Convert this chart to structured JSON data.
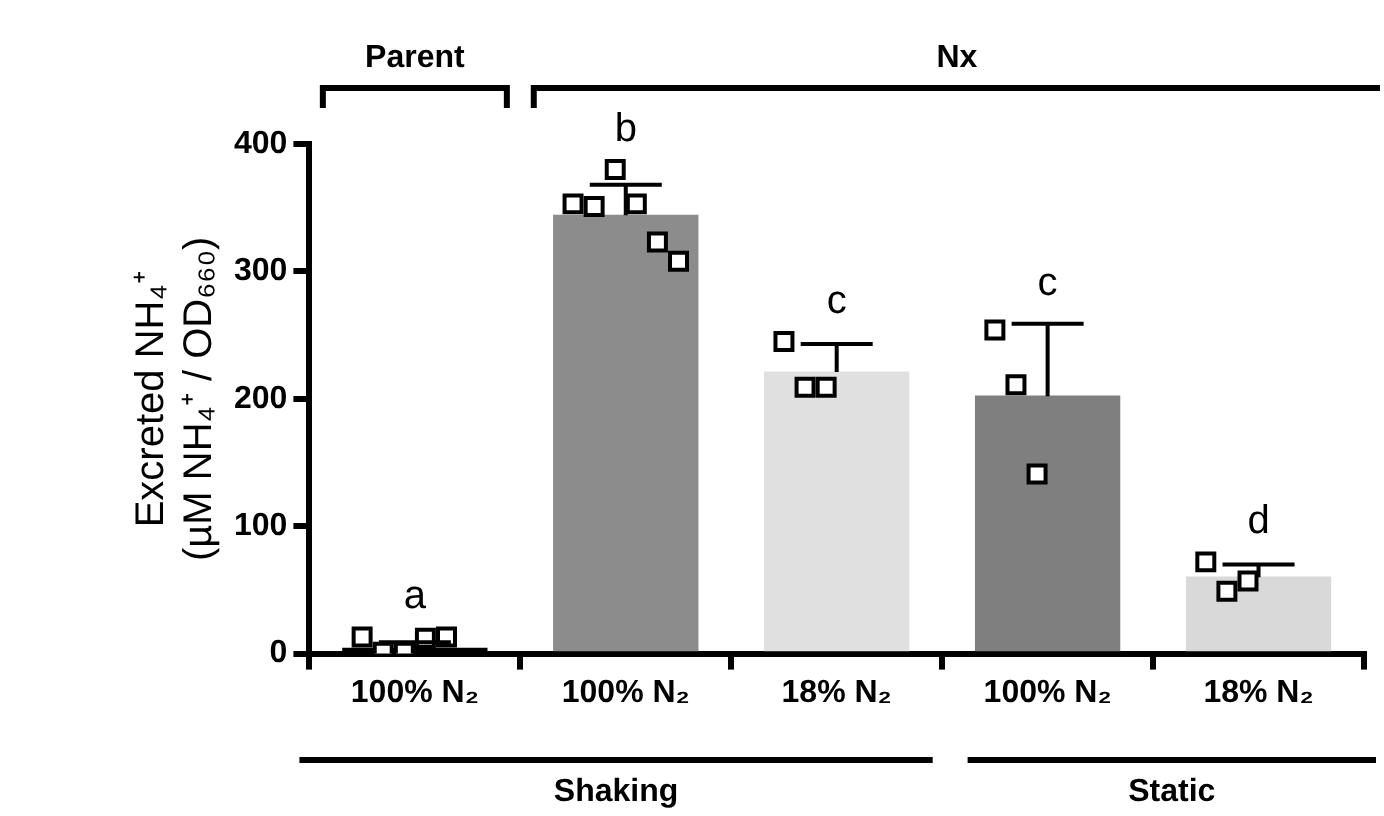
{
  "chart_data": {
    "type": "bar",
    "ylabel": "Excreted NH₄⁺\n(µM NH₄⁺ / OD₆₆₀)",
    "categories": [
      "100% N₂",
      "100% N₂",
      "18% N₂",
      "100% N₂",
      "18% N₂"
    ],
    "ylim": [
      0,
      400
    ],
    "yticks": [
      0,
      100,
      200,
      300,
      400
    ],
    "annotations": [
      "Parent",
      "Nx",
      "Shaking",
      "Static",
      "a",
      "b",
      "c",
      "c",
      "d"
    ],
    "series": [
      {
        "colors": [
          "#000000",
          "#8c8c8c",
          "#e0e0e0",
          "#7f7f7f",
          "#d9d9d9"
        ],
        "values": [
          4,
          344,
          221,
          202,
          60
        ],
        "errors": [
          [
            4,
            9
          ],
          [
            344,
            368
          ],
          [
            221,
            243
          ],
          [
            202,
            259
          ],
          [
            60,
            70
          ]
        ]
      },
      {
        "type": "scatter",
        "color": "#ffffff",
        "values": [
          13,
          353,
          245,
          254,
          72
        ]
      },
      {
        "type": "scatter",
        "color": "#ffffff",
        "values": [
          1,
          351,
          209,
          211,
          49
        ]
      },
      {
        "type": "scatter",
        "color": "#ffffff",
        "values": [
          1,
          380,
          209,
          141,
          57
        ]
      },
      {
        "type": "scatter",
        "color": "#ffffff",
        "values": [
          12,
          353,
          null,
          null,
          null
        ]
      },
      {
        "type": "scatter",
        "color": "#ffffff",
        "values": [
          13,
          323,
          null,
          null,
          null
        ]
      },
      {
        "type": "scatter",
        "color": "#ffffff",
        "values": [
          null,
          308,
          null,
          null,
          null
        ]
      }
    ],
    "marker": "square",
    "legend": false
  }
}
